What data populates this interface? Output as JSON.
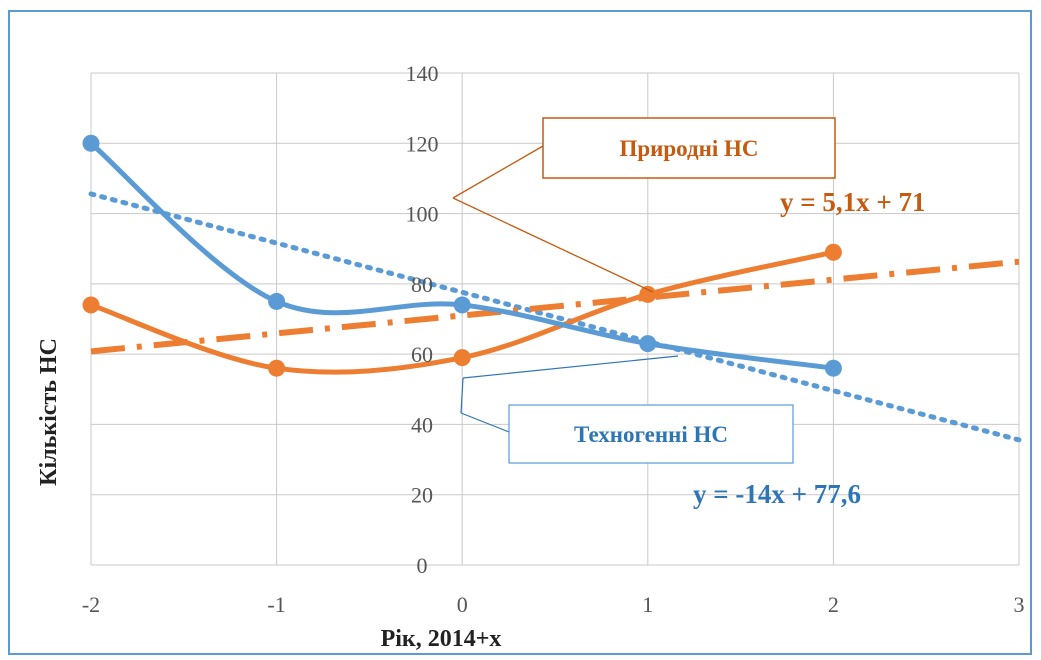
{
  "chart_data": {
    "type": "line",
    "xlabel": "Рік, 2014+х",
    "ylabel": "Кількість  НС",
    "xlim": [
      -2,
      3
    ],
    "ylim": [
      0,
      140
    ],
    "x_ticks": [
      "-2",
      "-1",
      "0",
      "1",
      "2",
      "3"
    ],
    "y_ticks": [
      "0",
      "20",
      "40",
      "60",
      "80",
      "100",
      "120",
      "140"
    ],
    "grid": true,
    "series": [
      {
        "name": "Техногенні НС",
        "color": "#5b9bd5",
        "x": [
          -2,
          -1,
          0,
          1,
          2
        ],
        "y": [
          120,
          75,
          74,
          63,
          56
        ],
        "trendline": {
          "slope": -14,
          "intercept": 77.6,
          "style": "dotted",
          "equation": "y = -14x + 77,6"
        }
      },
      {
        "name": "Природні НС",
        "color": "#ed7d31",
        "x": [
          -2,
          -1,
          0,
          1,
          2
        ],
        "y": [
          74,
          56,
          59,
          77,
          89
        ],
        "trendline": {
          "slope": 5.1,
          "intercept": 71,
          "style": "dash-dot",
          "equation": "y = 5,1x + 71"
        }
      }
    ]
  },
  "colors": {
    "frame": "#5b9bd5",
    "grid": "#c9c9c9",
    "natural_text": "#c55a11",
    "natural_eq": "#c55a11",
    "tech_text": "#2e75b6",
    "tech_eq": "#2e75b6"
  }
}
